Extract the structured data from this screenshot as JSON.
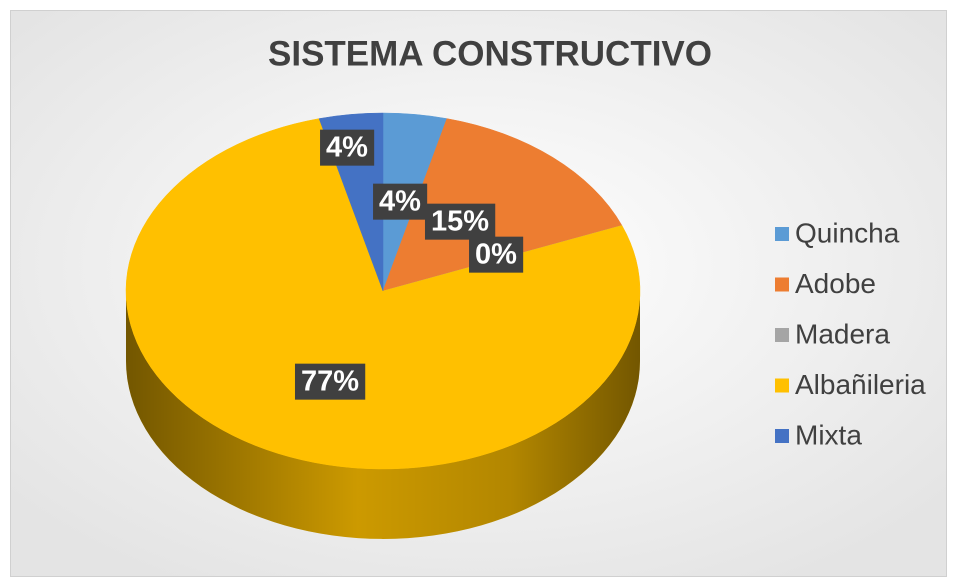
{
  "chart_data": {
    "type": "pie",
    "title": "SISTEMA CONSTRUCTIVO",
    "categories": [
      "Quincha",
      "Adobe",
      "Madera",
      "Albañileria",
      "Mixta"
    ],
    "values": [
      4,
      15,
      0,
      77,
      4
    ],
    "value_labels": [
      "4%",
      "15%",
      "0%",
      "77%",
      "4%"
    ],
    "colors": [
      "#5b9bd5",
      "#ed7d31",
      "#a5a5a5",
      "#ffc000",
      "#4472c4"
    ],
    "legend": "right"
  }
}
